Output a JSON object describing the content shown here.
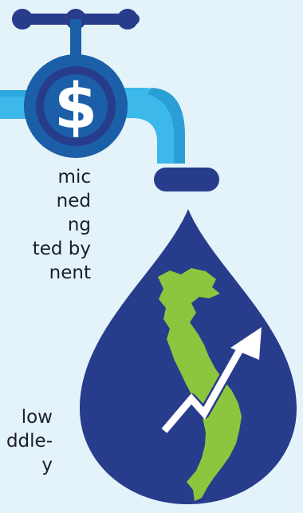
{
  "illustration": {
    "faucet_symbol": "$",
    "colors": {
      "background": "#e4f3f9",
      "pipe_light": "#3db8eb",
      "pipe_dark": "#1a5fa8",
      "navy": "#283c8c",
      "map_green": "#8cc63f",
      "arrow": "#ffffff"
    }
  },
  "text_fragments": {
    "block1": [
      "mic",
      "ned",
      "ng",
      "ted by",
      "nent"
    ],
    "block2": [
      "low",
      "ddle-",
      "y"
    ]
  }
}
